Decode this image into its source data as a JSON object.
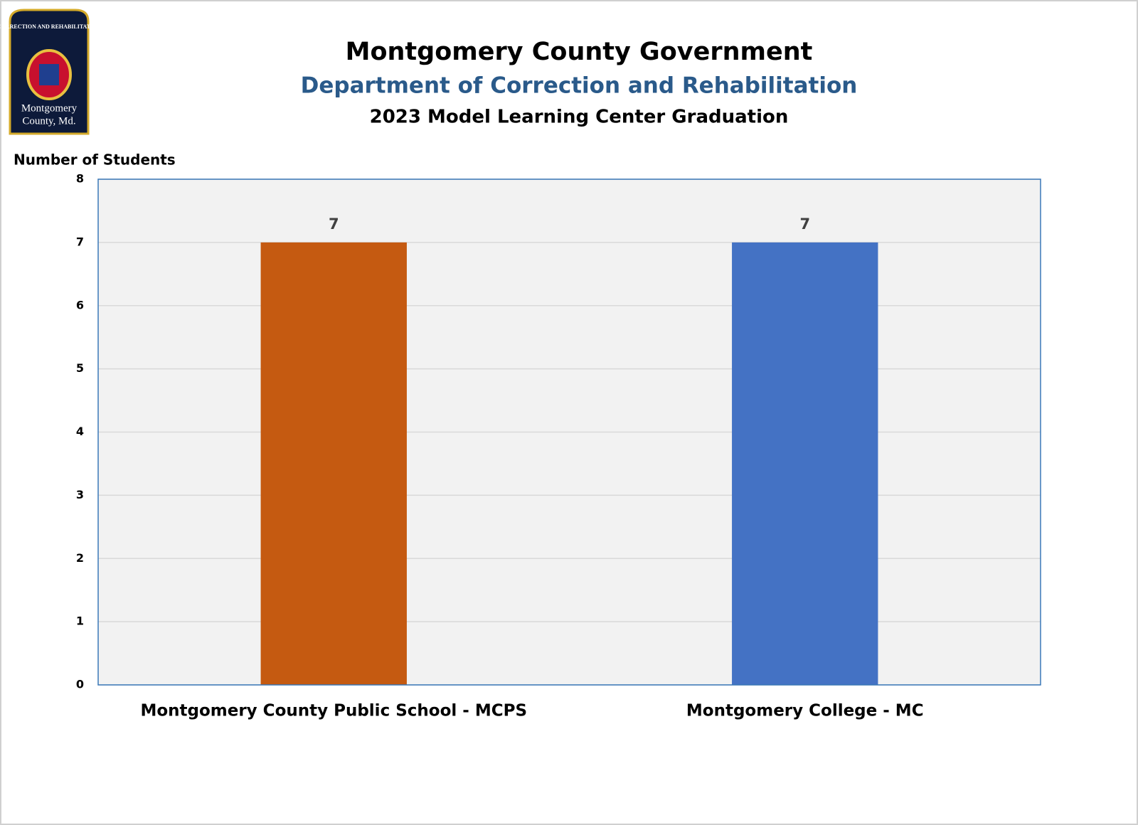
{
  "logo": {
    "top_text": "CORRECTION AND REHABILITATION",
    "bottom_line_1": "Montgomery",
    "bottom_line_2": "County, Md."
  },
  "chart_data": {
    "type": "bar",
    "title": "Montgomery County Government",
    "subtitle": "Department of Correction and Rehabilitation",
    "subtitle2": "2023 Model Learning Center Graduation",
    "y_label": "Number of Students",
    "categories": [
      "Montgomery County Public School - MCPS",
      "Montgomery College - MC"
    ],
    "values": [
      7,
      7
    ],
    "colors": [
      "#c55a11",
      "#4472c4"
    ],
    "ylim": [
      0,
      8
    ],
    "yticks": [
      0,
      1,
      2,
      3,
      4,
      5,
      6,
      7,
      8
    ],
    "grid": true
  }
}
